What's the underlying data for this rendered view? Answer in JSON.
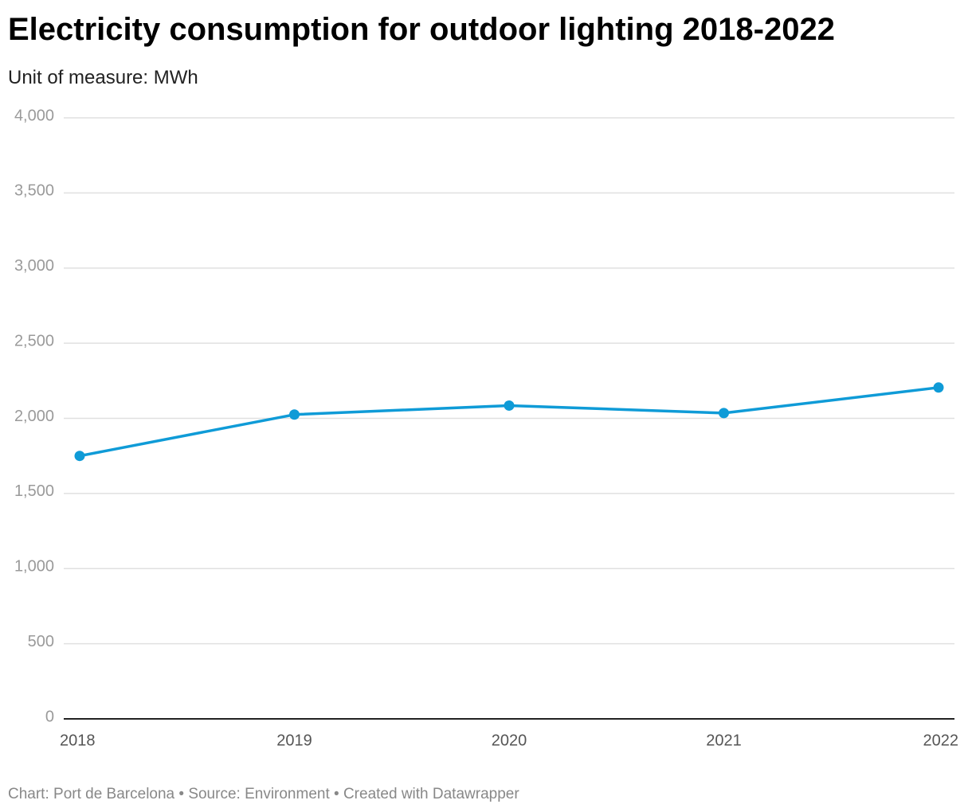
{
  "chart_data": {
    "type": "line",
    "title": "Electricity consumption for outdoor lighting 2018-2022",
    "subtitle": "Unit of measure: MWh",
    "footer": "Chart: Port de Barcelona • Source: Environment • Created with Datawrapper",
    "x": [
      2018,
      2019,
      2020,
      2021,
      2022
    ],
    "series": [
      {
        "name": "Electricity consumption",
        "color": "#0f9bd7",
        "values": [
          1750,
          2025,
          2085,
          2035,
          2205
        ]
      }
    ],
    "xlim": [
      2018,
      2022
    ],
    "xticks": [
      2018,
      2019,
      2020,
      2021,
      2022
    ],
    "ylim": [
      0,
      4000
    ],
    "yticks": [
      0,
      500,
      {
        "value": 1000,
        "label": "1,000"
      },
      {
        "value": 1500,
        "label": "1,500"
      },
      {
        "value": 2000,
        "label": "2,000"
      },
      {
        "value": 2500,
        "label": "2,500"
      },
      {
        "value": 3000,
        "label": "3,000"
      },
      {
        "value": 3500,
        "label": "3,500"
      },
      {
        "value": 4000,
        "label": "4,000"
      }
    ],
    "grid": true
  }
}
